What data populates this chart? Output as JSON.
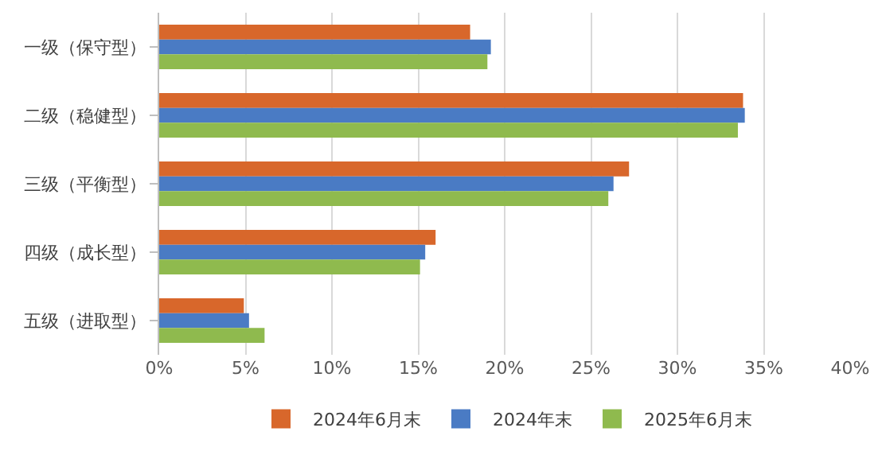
{
  "chart_data": {
    "type": "bar",
    "orientation": "horizontal",
    "categories": [
      "一级（保守型）",
      "二级（稳健型）",
      "三级（平衡型）",
      "四级（成长型）",
      "五级（进取型）"
    ],
    "series": [
      {
        "name": "2024年6月末",
        "color": "#d8672b",
        "values": [
          18.0,
          33.8,
          27.2,
          16.0,
          4.9
        ]
      },
      {
        "name": "2024年末",
        "color": "#4a7bc4",
        "values": [
          19.2,
          33.9,
          26.3,
          15.4,
          5.2
        ]
      },
      {
        "name": "2025年6月末",
        "color": "#8fba4e",
        "values": [
          19.0,
          33.5,
          26.0,
          15.1,
          6.1
        ]
      }
    ],
    "xlim": [
      0,
      40
    ],
    "xticks": [
      {
        "value": 0,
        "label": "0%"
      },
      {
        "value": 5,
        "label": "5%"
      },
      {
        "value": 10,
        "label": "10%"
      },
      {
        "value": 15,
        "label": "15%"
      },
      {
        "value": 20,
        "label": "20%"
      },
      {
        "value": 25,
        "label": "25%"
      },
      {
        "value": 30,
        "label": "30%"
      },
      {
        "value": 35,
        "label": "35%"
      },
      {
        "value": 40,
        "label": "40%"
      }
    ],
    "grid": "x",
    "legend": "bottom"
  }
}
